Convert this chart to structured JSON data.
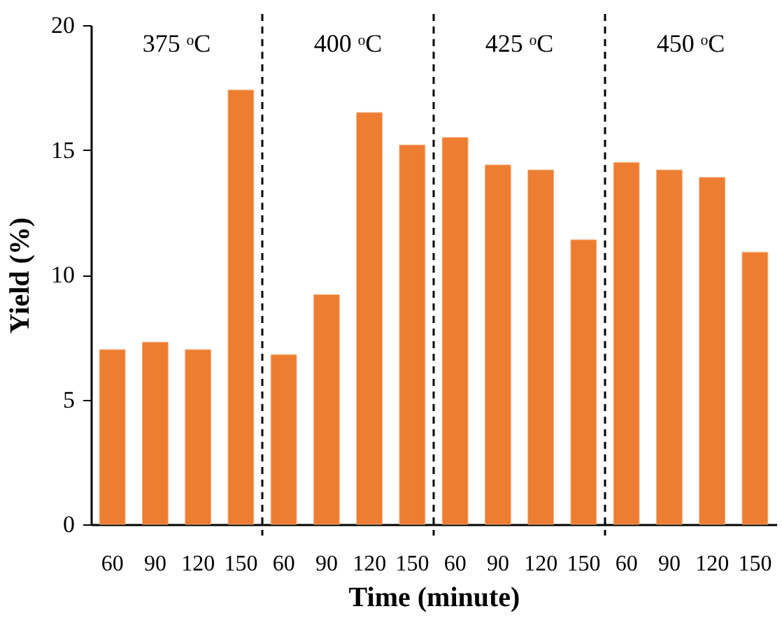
{
  "chart_data": {
    "type": "bar",
    "xlabel": "Time (minute)",
    "ylabel": "Yield (%)",
    "categories": [
      "60",
      "90",
      "120",
      "150",
      "60",
      "90",
      "120",
      "150",
      "60",
      "90",
      "120",
      "150",
      "60",
      "90",
      "120",
      "150"
    ],
    "series": [
      {
        "color": "#ed7d31",
        "values": [
          7.0,
          7.3,
          7.0,
          17.4,
          6.8,
          9.2,
          16.5,
          15.2,
          15.5,
          14.4,
          14.2,
          11.4,
          14.5,
          14.2,
          13.9,
          10.9
        ]
      }
    ],
    "ylim": [
      0,
      20
    ],
    "yticks": [
      0,
      5,
      10,
      15,
      20
    ],
    "grid": false,
    "annotations": [
      "375 ᵒC",
      "400 ᵒC",
      "425 ᵒC",
      "450 ᵒC"
    ]
  }
}
